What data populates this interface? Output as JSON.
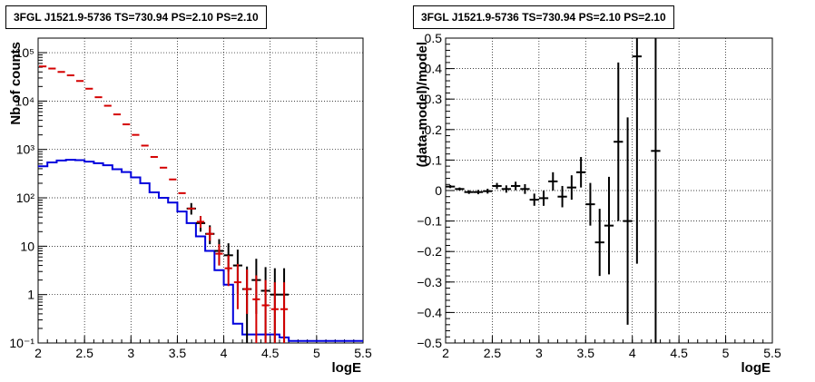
{
  "chart_data": [
    {
      "type": "line",
      "title": "3FGL J1521.9-5736 TS=730.94 PS=2.10 PS=2.10",
      "xlabel": "logE",
      "ylabel": "Nb of counts",
      "xlim": [
        2,
        5.5
      ],
      "ylim": [
        0.1,
        200000
      ],
      "yscale": "log",
      "grid": true,
      "x_ticks": [
        "2",
        "2.5",
        "3",
        "3.5",
        "4",
        "4.5",
        "5",
        "5.5"
      ],
      "y_ticks": [
        "10⁻¹",
        "1",
        "10",
        "10²",
        "10³",
        "10⁴",
        "10⁵"
      ],
      "bin_width": 0.1,
      "data_points": {
        "x": [
          3.65,
          3.75,
          3.85,
          3.95,
          4.05,
          4.15,
          4.25,
          4.35,
          4.45,
          4.55,
          4.65
        ],
        "y": [
          60,
          30,
          18,
          8,
          6.5,
          4,
          1.3,
          2,
          1.2,
          1,
          1
        ],
        "err_low": [
          15,
          10,
          7,
          4,
          3.5,
          3,
          1.2,
          1.6,
          1.1,
          0.9,
          0.9
        ],
        "err_high": [
          18,
          12,
          9,
          6,
          5,
          4.5,
          2.5,
          3.5,
          2.5,
          2.5,
          2.5
        ]
      },
      "series": [
        {
          "color": "#d40000",
          "x": [
            2.05,
            2.15,
            2.25,
            2.35,
            2.45,
            2.55,
            2.65,
            2.75,
            2.85,
            2.95,
            3.05,
            3.15,
            3.25,
            3.35,
            3.45,
            3.55,
            3.65,
            3.75,
            3.85,
            3.95,
            4.05,
            4.15,
            4.25,
            4.35,
            4.45,
            4.55,
            4.65
          ],
          "values": [
            52000,
            47000,
            40000,
            34000,
            26000,
            18000,
            12000,
            8000,
            5300,
            3300,
            2000,
            1200,
            700,
            420,
            240,
            125,
            60,
            32,
            18,
            7,
            3.5,
            1.8,
            1.3,
            0.8,
            0.6,
            0.5,
            0.5
          ],
          "err_low": [
            null,
            null,
            null,
            null,
            null,
            null,
            null,
            null,
            null,
            null,
            null,
            null,
            null,
            null,
            null,
            null,
            null,
            8,
            5,
            3,
            2,
            1.3,
            0.9,
            0.7,
            0.5,
            0.4,
            0.4
          ],
          "err_high": [
            null,
            null,
            null,
            null,
            null,
            null,
            null,
            null,
            null,
            null,
            null,
            null,
            null,
            null,
            null,
            null,
            null,
            10,
            7,
            4,
            3,
            2.5,
            2,
            1.7,
            1.4,
            1.3,
            1.3
          ]
        },
        {
          "color": "#0000dd",
          "style": "step",
          "edges": [
            2.0,
            2.1,
            2.2,
            2.3,
            2.4,
            2.5,
            2.6,
            2.7,
            2.8,
            2.9,
            3.0,
            3.1,
            3.2,
            3.3,
            3.4,
            3.5,
            3.6,
            3.7,
            3.8,
            3.9,
            4.0,
            4.1,
            4.2,
            4.3,
            4.4,
            4.5,
            4.6,
            4.7,
            5.5
          ],
          "values": [
            450,
            540,
            590,
            610,
            600,
            560,
            520,
            470,
            390,
            340,
            265,
            200,
            130,
            100,
            80,
            52,
            30,
            16,
            8,
            3.2,
            1.6,
            0.25,
            0.15,
            0.15,
            0.15,
            0.15,
            0.13,
            0.11
          ]
        }
      ]
    },
    {
      "type": "scatter",
      "title": "3FGL J1521.9-5736 TS=730.94 PS=2.10 PS=2.10",
      "xlabel": "logE",
      "ylabel": "(data-model)/model",
      "xlim": [
        2,
        5.5
      ],
      "ylim": [
        -0.5,
        0.5
      ],
      "grid": true,
      "x_ticks": [
        "2",
        "2.5",
        "3",
        "3.5",
        "4",
        "4.5",
        "5",
        "5.5"
      ],
      "y_ticks": [
        "−0.5",
        "−0.4",
        "−0.3",
        "−0.2",
        "−0.1",
        "0",
        "0.1",
        "0.2",
        "0.3",
        "0.4",
        "0.5"
      ],
      "bin_width": 0.1,
      "x": [
        2.05,
        2.15,
        2.25,
        2.35,
        2.45,
        2.55,
        2.65,
        2.75,
        2.85,
        2.95,
        3.05,
        3.15,
        3.25,
        3.35,
        3.45,
        3.55,
        3.65,
        3.75,
        3.85,
        3.95,
        4.05,
        4.25
      ],
      "values": [
        0.013,
        0.005,
        -0.005,
        -0.005,
        -0.002,
        0.015,
        0.005,
        0.015,
        0.005,
        -0.03,
        -0.025,
        0.03,
        -0.02,
        0.01,
        0.06,
        -0.045,
        -0.17,
        -0.115,
        0.16,
        -0.1,
        0.44,
        0.13
      ],
      "errors": [
        0.005,
        0.005,
        0.006,
        0.007,
        0.008,
        0.01,
        0.012,
        0.014,
        0.016,
        0.02,
        0.025,
        0.03,
        0.035,
        0.04,
        0.05,
        0.07,
        0.11,
        0.16,
        0.26,
        0.34,
        0.68,
        0.68
      ]
    }
  ]
}
